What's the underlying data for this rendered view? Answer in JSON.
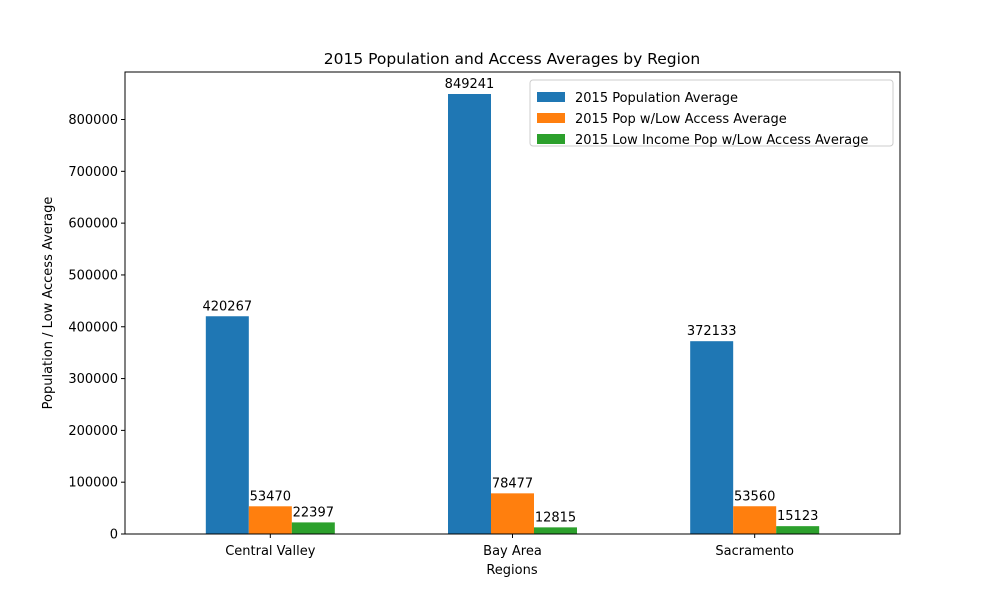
{
  "chart_data": {
    "type": "bar",
    "title": "2015 Population and Access Averages by Region",
    "xlabel": "Regions",
    "ylabel": "Population / Low Access Average",
    "categories": [
      "Central Valley",
      "Bay Area",
      "Sacramento"
    ],
    "ylim": [
      0,
      891703
    ],
    "yticks": [
      0,
      100000,
      200000,
      300000,
      400000,
      500000,
      600000,
      700000,
      800000
    ],
    "legend_position": "top-right",
    "grid": false,
    "series": [
      {
        "name": "2015 Population Average",
        "color": "#1f77b4",
        "values": [
          420267,
          849241,
          372133
        ]
      },
      {
        "name": "2015 Pop w/Low Access Average",
        "color": "#ff7f0e",
        "values": [
          53470,
          78477,
          53560
        ]
      },
      {
        "name": "2015 Low Income Pop w/Low Access Average",
        "color": "#2ca02c",
        "values": [
          22397,
          12815,
          15123
        ]
      }
    ]
  }
}
